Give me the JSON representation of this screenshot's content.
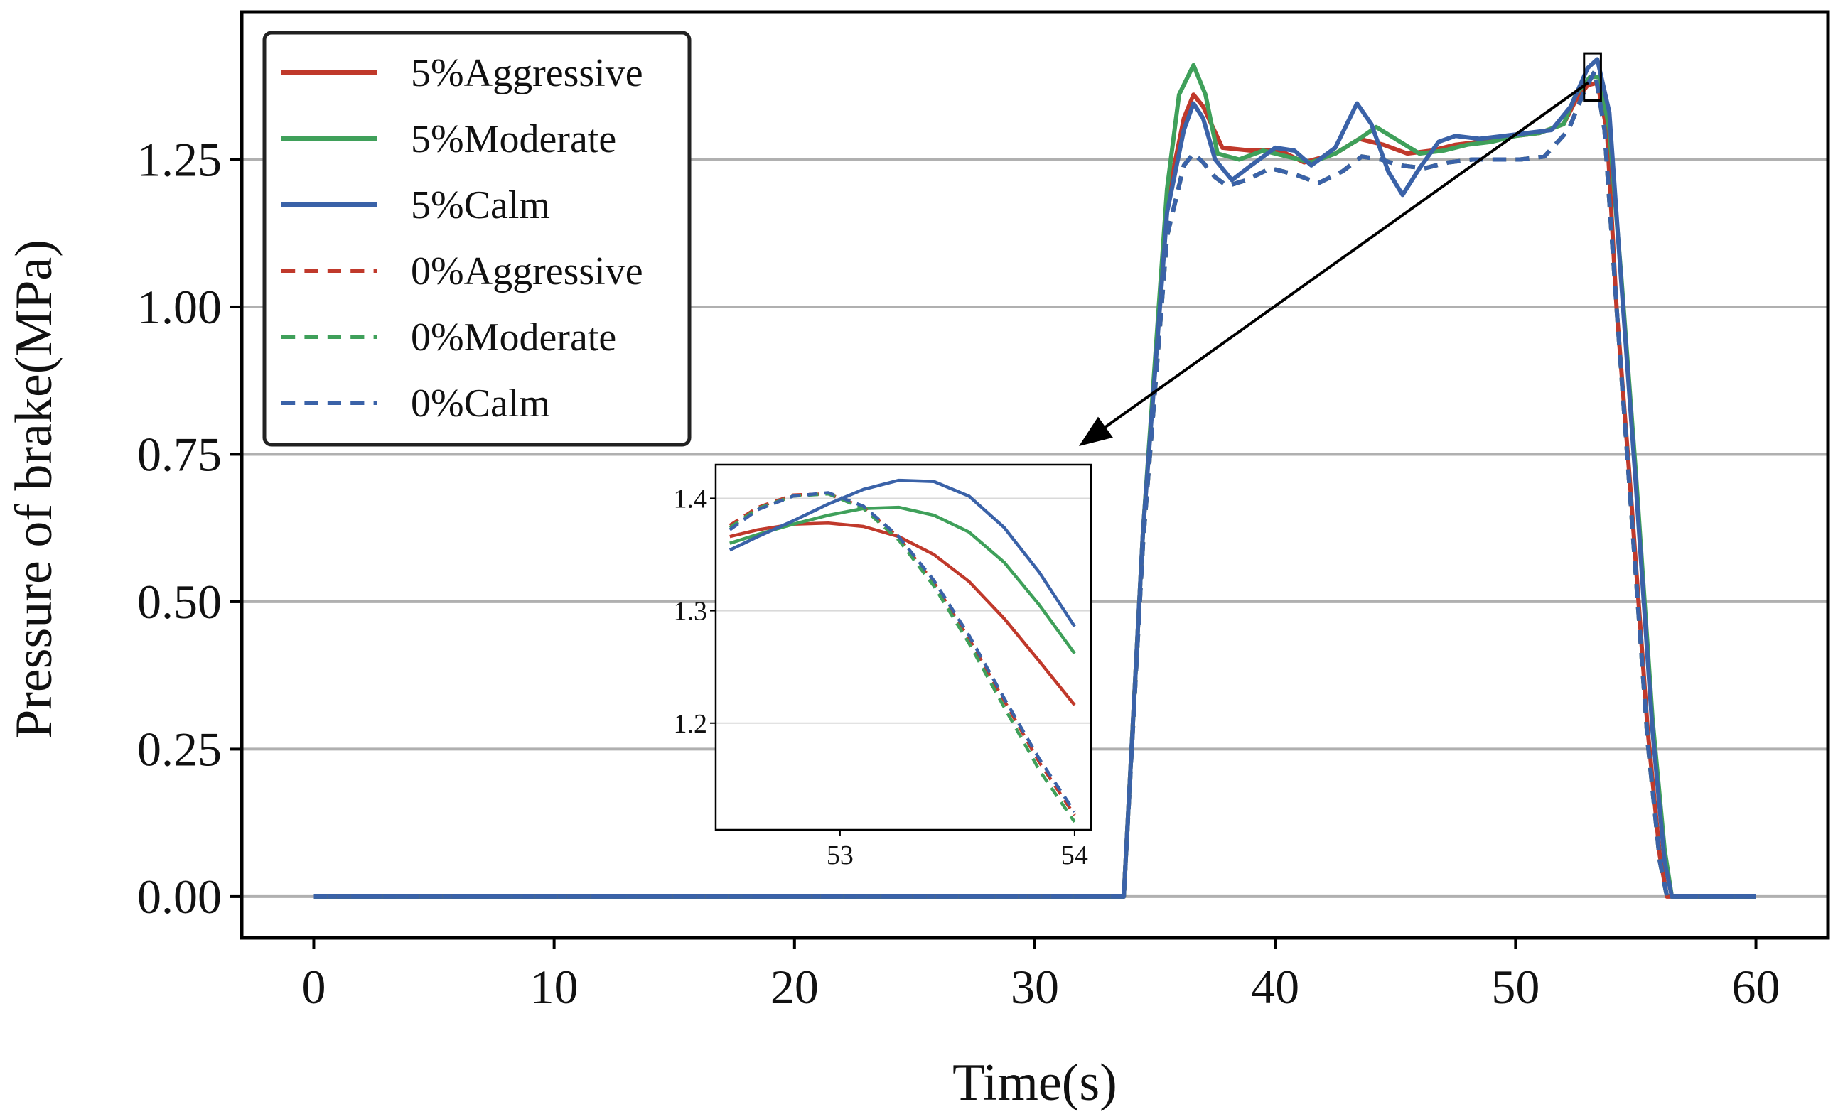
{
  "chart_data": {
    "type": "line",
    "title": "",
    "xlabel": "Time(s)",
    "ylabel": "Pressure of brake(MPa)",
    "xlim": [
      -3,
      63
    ],
    "ylim": [
      -0.07,
      1.5
    ],
    "x_ticks": [
      0,
      10,
      20,
      30,
      40,
      50,
      60
    ],
    "y_ticks": [
      0.0,
      0.25,
      0.5,
      0.75,
      1.0,
      1.25
    ],
    "x_tick_labels": [
      "0",
      "10",
      "20",
      "30",
      "40",
      "50",
      "60"
    ],
    "y_tick_labels": [
      "0.00",
      "0.25",
      "0.50",
      "0.75",
      "1.00",
      "1.25"
    ],
    "grid": "horizontal",
    "legend_position": "top-left",
    "series": [
      {
        "name": "5%Aggressive",
        "color": "#c0392b",
        "style": "solid",
        "x": [
          0,
          33.7,
          34.5,
          35.5,
          36.2,
          36.6,
          37.0,
          37.8,
          39.0,
          40.2,
          41.2,
          42.5,
          43.5,
          44.5,
          45.5,
          46.5,
          47.5,
          48.5,
          50.0,
          51.0,
          52.0,
          52.5,
          53.0,
          53.4,
          53.8,
          54.2,
          54.8,
          55.5,
          56.0,
          56.3,
          57.0,
          60.0
        ],
        "y": [
          0,
          0,
          0.62,
          1.18,
          1.32,
          1.36,
          1.34,
          1.27,
          1.265,
          1.265,
          1.245,
          1.26,
          1.285,
          1.275,
          1.26,
          1.265,
          1.275,
          1.28,
          1.29,
          1.295,
          1.31,
          1.35,
          1.376,
          1.38,
          1.3,
          1.0,
          0.68,
          0.28,
          0.07,
          0,
          0,
          0
        ]
      },
      {
        "name": "5%Moderate",
        "color": "#3fa05a",
        "style": "solid",
        "x": [
          0,
          33.7,
          34.5,
          35.5,
          36.0,
          36.6,
          37.1,
          37.6,
          38.5,
          39.5,
          40.5,
          41.5,
          42.5,
          43.5,
          44.2,
          45.0,
          46.0,
          47.0,
          48.0,
          49.0,
          50.0,
          51.0,
          52.0,
          52.5,
          53.1,
          53.5,
          53.9,
          54.4,
          55.0,
          55.7,
          56.2,
          56.5,
          57.0,
          60.0
        ],
        "y": [
          0,
          0,
          0.62,
          1.2,
          1.36,
          1.41,
          1.36,
          1.26,
          1.25,
          1.265,
          1.255,
          1.245,
          1.26,
          1.285,
          1.305,
          1.285,
          1.26,
          1.265,
          1.275,
          1.28,
          1.29,
          1.295,
          1.31,
          1.36,
          1.39,
          1.39,
          1.3,
          1.05,
          0.72,
          0.3,
          0.08,
          0,
          0,
          0
        ]
      },
      {
        "name": "5%Calm",
        "color": "#3a62a8",
        "style": "solid",
        "x": [
          0,
          33.7,
          34.5,
          35.5,
          36.2,
          36.6,
          37.0,
          37.5,
          38.2,
          39.0,
          40.0,
          40.8,
          41.5,
          42.5,
          43.4,
          44.0,
          44.7,
          45.3,
          46.0,
          46.8,
          47.5,
          48.5,
          49.5,
          50.5,
          51.5,
          52.3,
          53.0,
          53.4,
          53.9,
          54.4,
          55.0,
          55.7,
          56.2,
          56.5,
          57.0,
          60.0
        ],
        "y": [
          0,
          0,
          0.62,
          1.16,
          1.3,
          1.345,
          1.32,
          1.25,
          1.215,
          1.24,
          1.27,
          1.265,
          1.24,
          1.27,
          1.345,
          1.31,
          1.23,
          1.19,
          1.235,
          1.28,
          1.29,
          1.285,
          1.29,
          1.295,
          1.3,
          1.34,
          1.405,
          1.42,
          1.33,
          1.04,
          0.7,
          0.28,
          0.06,
          0,
          0,
          0
        ]
      },
      {
        "name": "0%Aggressive",
        "color": "#c0392b",
        "style": "dashed",
        "x": [
          0,
          33.7,
          34.5,
          35.5,
          36.2,
          36.6,
          37.0,
          37.5,
          38.0,
          38.8,
          39.8,
          40.8,
          41.8,
          42.8,
          43.6,
          44.4,
          45.2,
          46.2,
          47.2,
          48.2,
          49.2,
          50.2,
          51.2,
          52.2,
          52.9,
          53.3,
          53.7,
          54.2,
          54.8,
          55.5,
          56.0,
          56.3,
          57.0,
          60.0
        ],
        "y": [
          0,
          0,
          0.6,
          1.12,
          1.24,
          1.26,
          1.245,
          1.22,
          1.205,
          1.215,
          1.235,
          1.225,
          1.21,
          1.23,
          1.255,
          1.25,
          1.24,
          1.235,
          1.245,
          1.25,
          1.25,
          1.25,
          1.255,
          1.3,
          1.37,
          1.4,
          1.3,
          1.0,
          0.66,
          0.26,
          0.06,
          0,
          0,
          0
        ]
      },
      {
        "name": "0%Moderate",
        "color": "#3fa05a",
        "style": "dashed",
        "x": [
          0,
          33.7,
          34.5,
          35.5,
          36.2,
          36.6,
          37.0,
          37.5,
          38.0,
          38.8,
          39.8,
          40.8,
          41.8,
          42.8,
          43.6,
          44.4,
          45.2,
          46.2,
          47.2,
          48.2,
          49.2,
          50.2,
          51.2,
          52.2,
          52.9,
          53.3,
          53.7,
          54.2,
          54.8,
          55.5,
          56.0,
          56.3,
          57.0,
          60.0
        ],
        "y": [
          0,
          0,
          0.6,
          1.12,
          1.24,
          1.26,
          1.245,
          1.22,
          1.205,
          1.215,
          1.235,
          1.225,
          1.21,
          1.23,
          1.255,
          1.25,
          1.24,
          1.235,
          1.245,
          1.25,
          1.25,
          1.25,
          1.255,
          1.3,
          1.37,
          1.4,
          1.3,
          1.0,
          0.66,
          0.26,
          0.06,
          0,
          0,
          0
        ]
      },
      {
        "name": "0%Calm",
        "color": "#3a62a8",
        "style": "dashed",
        "x": [
          0,
          33.7,
          34.5,
          35.5,
          36.2,
          36.6,
          37.0,
          37.5,
          38.0,
          38.8,
          39.8,
          40.8,
          41.8,
          42.8,
          43.6,
          44.4,
          45.2,
          46.2,
          47.2,
          48.2,
          49.2,
          50.2,
          51.2,
          52.2,
          52.9,
          53.3,
          53.7,
          54.2,
          54.8,
          55.5,
          56.0,
          56.3,
          57.0,
          60.0
        ],
        "y": [
          0,
          0,
          0.6,
          1.12,
          1.24,
          1.26,
          1.245,
          1.22,
          1.205,
          1.215,
          1.235,
          1.225,
          1.21,
          1.23,
          1.255,
          1.25,
          1.24,
          1.235,
          1.245,
          1.25,
          1.25,
          1.25,
          1.255,
          1.3,
          1.37,
          1.4,
          1.3,
          1.0,
          0.66,
          0.26,
          0.06,
          0,
          0,
          0
        ]
      }
    ],
    "inset": {
      "xlim": [
        52.47,
        54.07
      ],
      "ylim": [
        1.105,
        1.43
      ],
      "x_ticks": [
        53,
        54
      ],
      "y_ticks": [
        1.2,
        1.3,
        1.4
      ],
      "x_tick_labels": [
        "53",
        "54"
      ],
      "y_tick_labels": [
        "1.2",
        "1.3",
        "1.4"
      ],
      "zoom_box": {
        "x": [
          52.85,
          53.55
        ],
        "y": [
          1.35,
          1.43
        ]
      },
      "series": [
        {
          "name": "5%Aggressive",
          "color": "#c0392b",
          "style": "solid",
          "x": [
            52.53,
            52.65,
            52.8,
            52.95,
            53.1,
            53.25,
            53.4,
            53.55,
            53.7,
            53.85,
            54.0
          ],
          "y": [
            1.366,
            1.372,
            1.377,
            1.378,
            1.375,
            1.366,
            1.35,
            1.326,
            1.293,
            1.255,
            1.216
          ]
        },
        {
          "name": "5%Moderate",
          "color": "#3fa05a",
          "style": "solid",
          "x": [
            52.53,
            52.65,
            52.8,
            52.95,
            53.1,
            53.25,
            53.4,
            53.55,
            53.7,
            53.85,
            54.0
          ],
          "y": [
            1.36,
            1.368,
            1.377,
            1.385,
            1.391,
            1.392,
            1.385,
            1.37,
            1.343,
            1.305,
            1.262
          ]
        },
        {
          "name": "5%Calm",
          "color": "#3a62a8",
          "style": "solid",
          "x": [
            52.53,
            52.65,
            52.8,
            52.95,
            53.1,
            53.25,
            53.4,
            53.55,
            53.7,
            53.85,
            54.0
          ],
          "y": [
            1.354,
            1.366,
            1.38,
            1.395,
            1.408,
            1.416,
            1.415,
            1.402,
            1.374,
            1.334,
            1.286
          ]
        },
        {
          "name": "0%Aggressive",
          "color": "#c0392b",
          "style": "dashed",
          "x": [
            52.53,
            52.65,
            52.8,
            52.95,
            53.1,
            53.25,
            53.4,
            53.55,
            53.7,
            53.85,
            54.0
          ],
          "y": [
            1.376,
            1.392,
            1.403,
            1.404,
            1.392,
            1.365,
            1.325,
            1.275,
            1.22,
            1.165,
            1.118
          ]
        },
        {
          "name": "0%Moderate",
          "color": "#3fa05a",
          "style": "dashed",
          "x": [
            52.53,
            52.65,
            52.8,
            52.95,
            53.1,
            53.25,
            53.4,
            53.55,
            53.7,
            53.85,
            54.0
          ],
          "y": [
            1.374,
            1.391,
            1.402,
            1.404,
            1.391,
            1.363,
            1.322,
            1.271,
            1.214,
            1.158,
            1.112
          ]
        },
        {
          "name": "0%Calm",
          "color": "#3a62a8",
          "style": "dashed",
          "x": [
            52.53,
            52.65,
            52.8,
            52.95,
            53.1,
            53.25,
            53.4,
            53.55,
            53.7,
            53.85,
            54.0
          ],
          "y": [
            1.372,
            1.39,
            1.402,
            1.405,
            1.393,
            1.366,
            1.327,
            1.278,
            1.222,
            1.168,
            1.121
          ]
        }
      ]
    }
  }
}
